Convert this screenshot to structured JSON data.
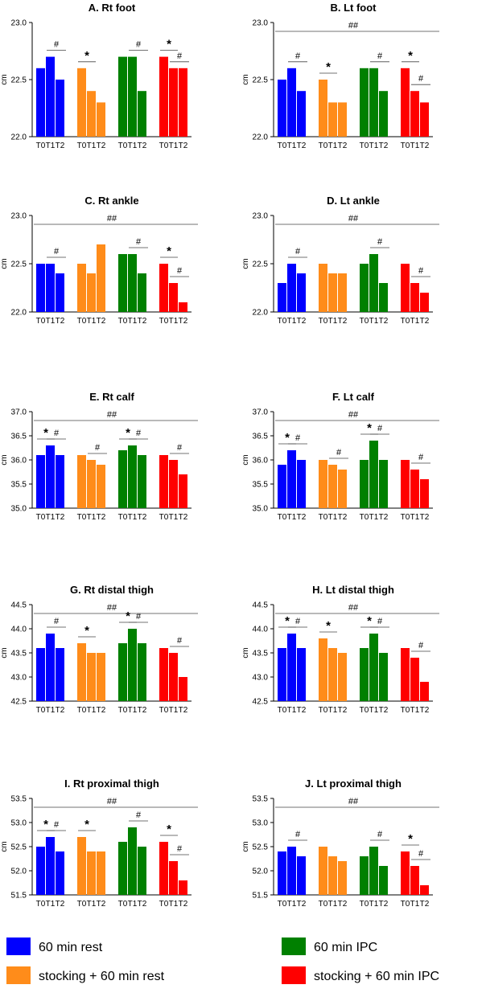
{
  "colors": {
    "rest": "#0000FF",
    "stock_rest": "#FF8C1A",
    "ipc": "#008000",
    "stock_ipc": "#FF0000",
    "axis": "#000000",
    "annot": "#444444"
  },
  "group_order": [
    "rest",
    "stock_rest",
    "ipc",
    "stock_ipc"
  ],
  "time_labels": [
    "T0",
    "T1",
    "T2"
  ],
  "legend": {
    "items": [
      {
        "key": "rest",
        "label": "60 min rest"
      },
      {
        "key": "ipc",
        "label": "60 min IPC"
      },
      {
        "key": "stock_rest",
        "label": "stocking + 60 min rest"
      },
      {
        "key": "stock_ipc",
        "label": "stocking + 60 min IPC"
      }
    ]
  },
  "chart_data": [
    {
      "type": "bar",
      "title": "A. Rt foot",
      "ylabel": "cm",
      "ylim": [
        22.0,
        23.0
      ],
      "ticks": [
        "22.0",
        "22.5",
        "23.0"
      ],
      "categories": [
        "T0",
        "T1",
        "T2"
      ],
      "series": [
        {
          "name": "60 min rest",
          "values": [
            22.6,
            22.7,
            22.5
          ]
        },
        {
          "name": "stocking + 60 min rest",
          "values": [
            22.6,
            22.4,
            22.3
          ]
        },
        {
          "name": "60 min IPC",
          "values": [
            22.7,
            22.7,
            22.4
          ]
        },
        {
          "name": "stocking + 60 min IPC",
          "values": [
            22.7,
            22.6,
            22.6
          ]
        }
      ],
      "star": [
        false,
        true,
        false,
        true
      ],
      "hash": [
        true,
        false,
        true,
        true
      ],
      "hh": ""
    },
    {
      "type": "bar",
      "title": "B. Lt foot",
      "ylabel": "cm",
      "ylim": [
        22.0,
        23.0
      ],
      "ticks": [
        "22.0",
        "22.5",
        "23.0"
      ],
      "categories": [
        "T0",
        "T1",
        "T2"
      ],
      "series": [
        {
          "name": "60 min rest",
          "values": [
            22.5,
            22.6,
            22.4
          ]
        },
        {
          "name": "stocking + 60 min rest",
          "values": [
            22.5,
            22.3,
            22.3
          ]
        },
        {
          "name": "60 min IPC",
          "values": [
            22.6,
            22.6,
            22.4
          ]
        },
        {
          "name": "stocking + 60 min IPC",
          "values": [
            22.6,
            22.4,
            22.3
          ]
        }
      ],
      "star": [
        false,
        true,
        false,
        true
      ],
      "hash": [
        true,
        false,
        true,
        true
      ],
      "hh": "##"
    },
    {
      "type": "bar",
      "title": "C. Rt ankle",
      "ylabel": "cm",
      "ylim": [
        22.0,
        23.0
      ],
      "ticks": [
        "22.0",
        "22.5",
        "23.0"
      ],
      "categories": [
        "T0",
        "T1",
        "T2"
      ],
      "series": [
        {
          "name": "60 min rest",
          "values": [
            22.5,
            22.5,
            22.4
          ]
        },
        {
          "name": "stocking + 60 min rest",
          "values": [
            22.5,
            22.4,
            22.7
          ]
        },
        {
          "name": "60 min IPC",
          "values": [
            22.6,
            22.6,
            22.4
          ]
        },
        {
          "name": "stocking + 60 min IPC",
          "values": [
            22.5,
            22.3,
            22.1
          ]
        }
      ],
      "star": [
        false,
        false,
        false,
        true
      ],
      "hash": [
        true,
        false,
        true,
        true
      ],
      "hh": "##"
    },
    {
      "type": "bar",
      "title": "D. Lt ankle",
      "ylabel": "cm",
      "ylim": [
        22.0,
        23.0
      ],
      "ticks": [
        "22.0",
        "22.5",
        "23.0"
      ],
      "categories": [
        "T0",
        "T1",
        "T2"
      ],
      "series": [
        {
          "name": "60 min rest",
          "values": [
            22.3,
            22.5,
            22.4
          ]
        },
        {
          "name": "stocking + 60 min rest",
          "values": [
            22.5,
            22.4,
            22.4
          ]
        },
        {
          "name": "60 min IPC",
          "values": [
            22.5,
            22.6,
            22.3
          ]
        },
        {
          "name": "stocking + 60 min IPC",
          "values": [
            22.5,
            22.3,
            22.2
          ]
        }
      ],
      "star": [
        false,
        false,
        false,
        false
      ],
      "hash": [
        true,
        false,
        true,
        true
      ],
      "hh": "##"
    },
    {
      "type": "bar",
      "title": "E. Rt calf",
      "ylabel": "cm",
      "ylim": [
        35.0,
        37.0
      ],
      "ticks": [
        "35.0",
        "35.5",
        "36.0",
        "36.5",
        "37.0"
      ],
      "categories": [
        "T0",
        "T1",
        "T2"
      ],
      "series": [
        {
          "name": "60 min rest",
          "values": [
            36.1,
            36.3,
            36.1
          ]
        },
        {
          "name": "stocking + 60 min rest",
          "values": [
            36.1,
            36.0,
            35.9
          ]
        },
        {
          "name": "60 min IPC",
          "values": [
            36.2,
            36.3,
            36.1
          ]
        },
        {
          "name": "stocking + 60 min IPC",
          "values": [
            36.1,
            36.0,
            35.7
          ]
        }
      ],
      "star": [
        true,
        false,
        true,
        false
      ],
      "hash": [
        true,
        true,
        true,
        true
      ],
      "hh": "##"
    },
    {
      "type": "bar",
      "title": "F. Lt calf",
      "ylabel": "cm",
      "ylim": [
        35.0,
        37.0
      ],
      "ticks": [
        "35.0",
        "35.5",
        "36.0",
        "36.5",
        "37.0"
      ],
      "categories": [
        "T0",
        "T1",
        "T2"
      ],
      "series": [
        {
          "name": "60 min rest",
          "values": [
            35.9,
            36.2,
            36.0
          ]
        },
        {
          "name": "stocking + 60 min rest",
          "values": [
            36.0,
            35.9,
            35.8
          ]
        },
        {
          "name": "60 min IPC",
          "values": [
            36.0,
            36.4,
            36.0
          ]
        },
        {
          "name": "stocking + 60 min IPC",
          "values": [
            36.0,
            35.8,
            35.6
          ]
        }
      ],
      "star": [
        true,
        false,
        true,
        false
      ],
      "hash": [
        true,
        true,
        true,
        true
      ],
      "hh": "##"
    },
    {
      "type": "bar",
      "title": "G. Rt distal thigh",
      "ylabel": "cm",
      "ylim": [
        42.5,
        44.5
      ],
      "ticks": [
        "42.5",
        "43.0",
        "43.5",
        "44.0",
        "44.5"
      ],
      "categories": [
        "T0",
        "T1",
        "T2"
      ],
      "series": [
        {
          "name": "60 min rest",
          "values": [
            43.6,
            43.9,
            43.6
          ]
        },
        {
          "name": "stocking + 60 min rest",
          "values": [
            43.7,
            43.5,
            43.5
          ]
        },
        {
          "name": "60 min IPC",
          "values": [
            43.7,
            44.0,
            43.7
          ]
        },
        {
          "name": "stocking + 60 min IPC",
          "values": [
            43.6,
            43.5,
            43.0
          ]
        }
      ],
      "star": [
        false,
        true,
        true,
        false
      ],
      "hash": [
        true,
        false,
        true,
        true
      ],
      "hh": "##"
    },
    {
      "type": "bar",
      "title": "H. Lt distal thigh",
      "ylabel": "cm",
      "ylim": [
        42.5,
        44.5
      ],
      "ticks": [
        "42.5",
        "43.0",
        "43.5",
        "44.0",
        "44.5"
      ],
      "categories": [
        "T0",
        "T1",
        "T2"
      ],
      "series": [
        {
          "name": "60 min rest",
          "values": [
            43.6,
            43.9,
            43.6
          ]
        },
        {
          "name": "stocking + 60 min rest",
          "values": [
            43.8,
            43.6,
            43.5
          ]
        },
        {
          "name": "60 min IPC",
          "values": [
            43.6,
            43.9,
            43.5
          ]
        },
        {
          "name": "stocking + 60 min IPC",
          "values": [
            43.6,
            43.4,
            42.9
          ]
        }
      ],
      "star": [
        true,
        true,
        true,
        false
      ],
      "hash": [
        true,
        false,
        true,
        true
      ],
      "hh": "##"
    },
    {
      "type": "bar",
      "title": "I. Rt proximal thigh",
      "ylabel": "cm",
      "ylim": [
        51.5,
        53.5
      ],
      "ticks": [
        "51.5",
        "52.0",
        "52.5",
        "53.0",
        "53.5"
      ],
      "categories": [
        "T0",
        "T1",
        "T2"
      ],
      "series": [
        {
          "name": "60 min rest",
          "values": [
            52.5,
            52.7,
            52.4
          ]
        },
        {
          "name": "stocking + 60 min rest",
          "values": [
            52.7,
            52.4,
            52.4
          ]
        },
        {
          "name": "60 min IPC",
          "values": [
            52.6,
            52.9,
            52.5
          ]
        },
        {
          "name": "stocking + 60 min IPC",
          "values": [
            52.6,
            52.2,
            51.8
          ]
        }
      ],
      "star": [
        true,
        true,
        false,
        true
      ],
      "hash": [
        true,
        false,
        true,
        true
      ],
      "hh": "##"
    },
    {
      "type": "bar",
      "title": "J. Lt proximal thigh",
      "ylabel": "cm",
      "ylim": [
        51.5,
        53.5
      ],
      "ticks": [
        "51.5",
        "52.0",
        "52.5",
        "53.0",
        "53.5"
      ],
      "categories": [
        "T0",
        "T1",
        "T2"
      ],
      "series": [
        {
          "name": "60 min rest",
          "values": [
            52.4,
            52.5,
            52.3
          ]
        },
        {
          "name": "stocking + 60 min rest",
          "values": [
            52.5,
            52.3,
            52.2
          ]
        },
        {
          "name": "60 min IPC",
          "values": [
            52.3,
            52.5,
            52.1
          ]
        },
        {
          "name": "stocking + 60 min IPC",
          "values": [
            52.4,
            52.1,
            51.7
          ]
        }
      ],
      "star": [
        false,
        false,
        false,
        true
      ],
      "hash": [
        true,
        false,
        true,
        true
      ],
      "hh": "##"
    }
  ]
}
